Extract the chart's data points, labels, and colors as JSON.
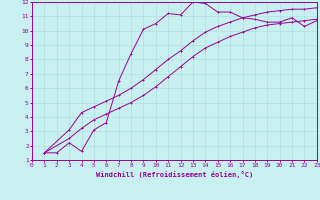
{
  "xlabel": "Windchill (Refroidissement éolien,°C)",
  "bg_color": "#c8f0f0",
  "line_color": "#990099",
  "grid_color": "#b0dede",
  "xlim": [
    0,
    23
  ],
  "ylim": [
    1,
    12
  ],
  "xticks": [
    0,
    1,
    2,
    3,
    4,
    5,
    6,
    7,
    8,
    9,
    10,
    11,
    12,
    13,
    14,
    15,
    16,
    17,
    18,
    19,
    20,
    21,
    22,
    23
  ],
  "yticks": [
    1,
    2,
    3,
    4,
    5,
    6,
    7,
    8,
    9,
    10,
    11,
    12
  ],
  "series1_x": [
    1,
    2,
    3,
    4,
    5,
    6,
    7,
    8,
    9,
    10,
    11,
    12,
    13,
    14,
    15,
    16,
    17,
    18,
    19,
    20,
    21,
    22,
    23
  ],
  "series1_y": [
    1.5,
    1.5,
    2.2,
    1.6,
    3.1,
    3.6,
    6.5,
    8.4,
    10.1,
    10.5,
    11.2,
    11.1,
    12.0,
    11.9,
    11.3,
    11.3,
    10.9,
    10.8,
    10.6,
    10.6,
    10.9,
    10.3,
    10.7
  ],
  "series2_x": [
    1,
    3,
    4,
    5,
    6,
    7,
    8,
    9,
    10,
    11,
    12,
    13,
    14,
    15,
    16,
    17,
    18,
    19,
    20,
    21,
    22,
    23
  ],
  "series2_y": [
    1.5,
    3.1,
    4.3,
    4.7,
    5.1,
    5.5,
    6.0,
    6.6,
    7.3,
    8.0,
    8.6,
    9.3,
    9.9,
    10.3,
    10.6,
    10.9,
    11.1,
    11.3,
    11.4,
    11.5,
    11.5,
    11.6
  ],
  "series3_x": [
    1,
    3,
    4,
    5,
    6,
    7,
    8,
    9,
    10,
    11,
    12,
    13,
    14,
    15,
    16,
    17,
    18,
    19,
    20,
    21,
    22,
    23
  ],
  "series3_y": [
    1.5,
    2.5,
    3.2,
    3.8,
    4.2,
    4.6,
    5.0,
    5.5,
    6.1,
    6.8,
    7.5,
    8.2,
    8.8,
    9.2,
    9.6,
    9.9,
    10.2,
    10.4,
    10.5,
    10.6,
    10.7,
    10.8
  ]
}
